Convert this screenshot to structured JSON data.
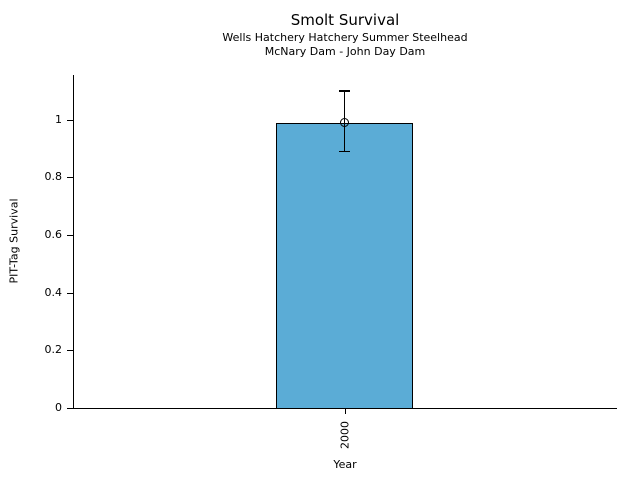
{
  "chart_data": {
    "type": "bar",
    "title": "Smolt Survival",
    "subtitle_line1": "Wells Hatchery Hatchery Summer Steelhead",
    "subtitle_line2": "McNary Dam - John Day Dam",
    "xlabel": "Year",
    "ylabel": "PIT-Tag Survival",
    "categories": [
      "2000"
    ],
    "values": [
      0.99
    ],
    "error_low": [
      0.89
    ],
    "error_high": [
      1.1
    ],
    "yticks": [
      0,
      0.2,
      0.4,
      0.6,
      0.8,
      1
    ],
    "ytick_labels": [
      "0",
      "0.2",
      "0.4",
      "0.6",
      "0.8",
      "1"
    ],
    "ylim": [
      0,
      1.155
    ],
    "grid": false,
    "legend": null,
    "bar_color": "#5BACD6",
    "bar_edge_color": "#000000",
    "error_color": "#000000",
    "marker": "open-circle"
  }
}
